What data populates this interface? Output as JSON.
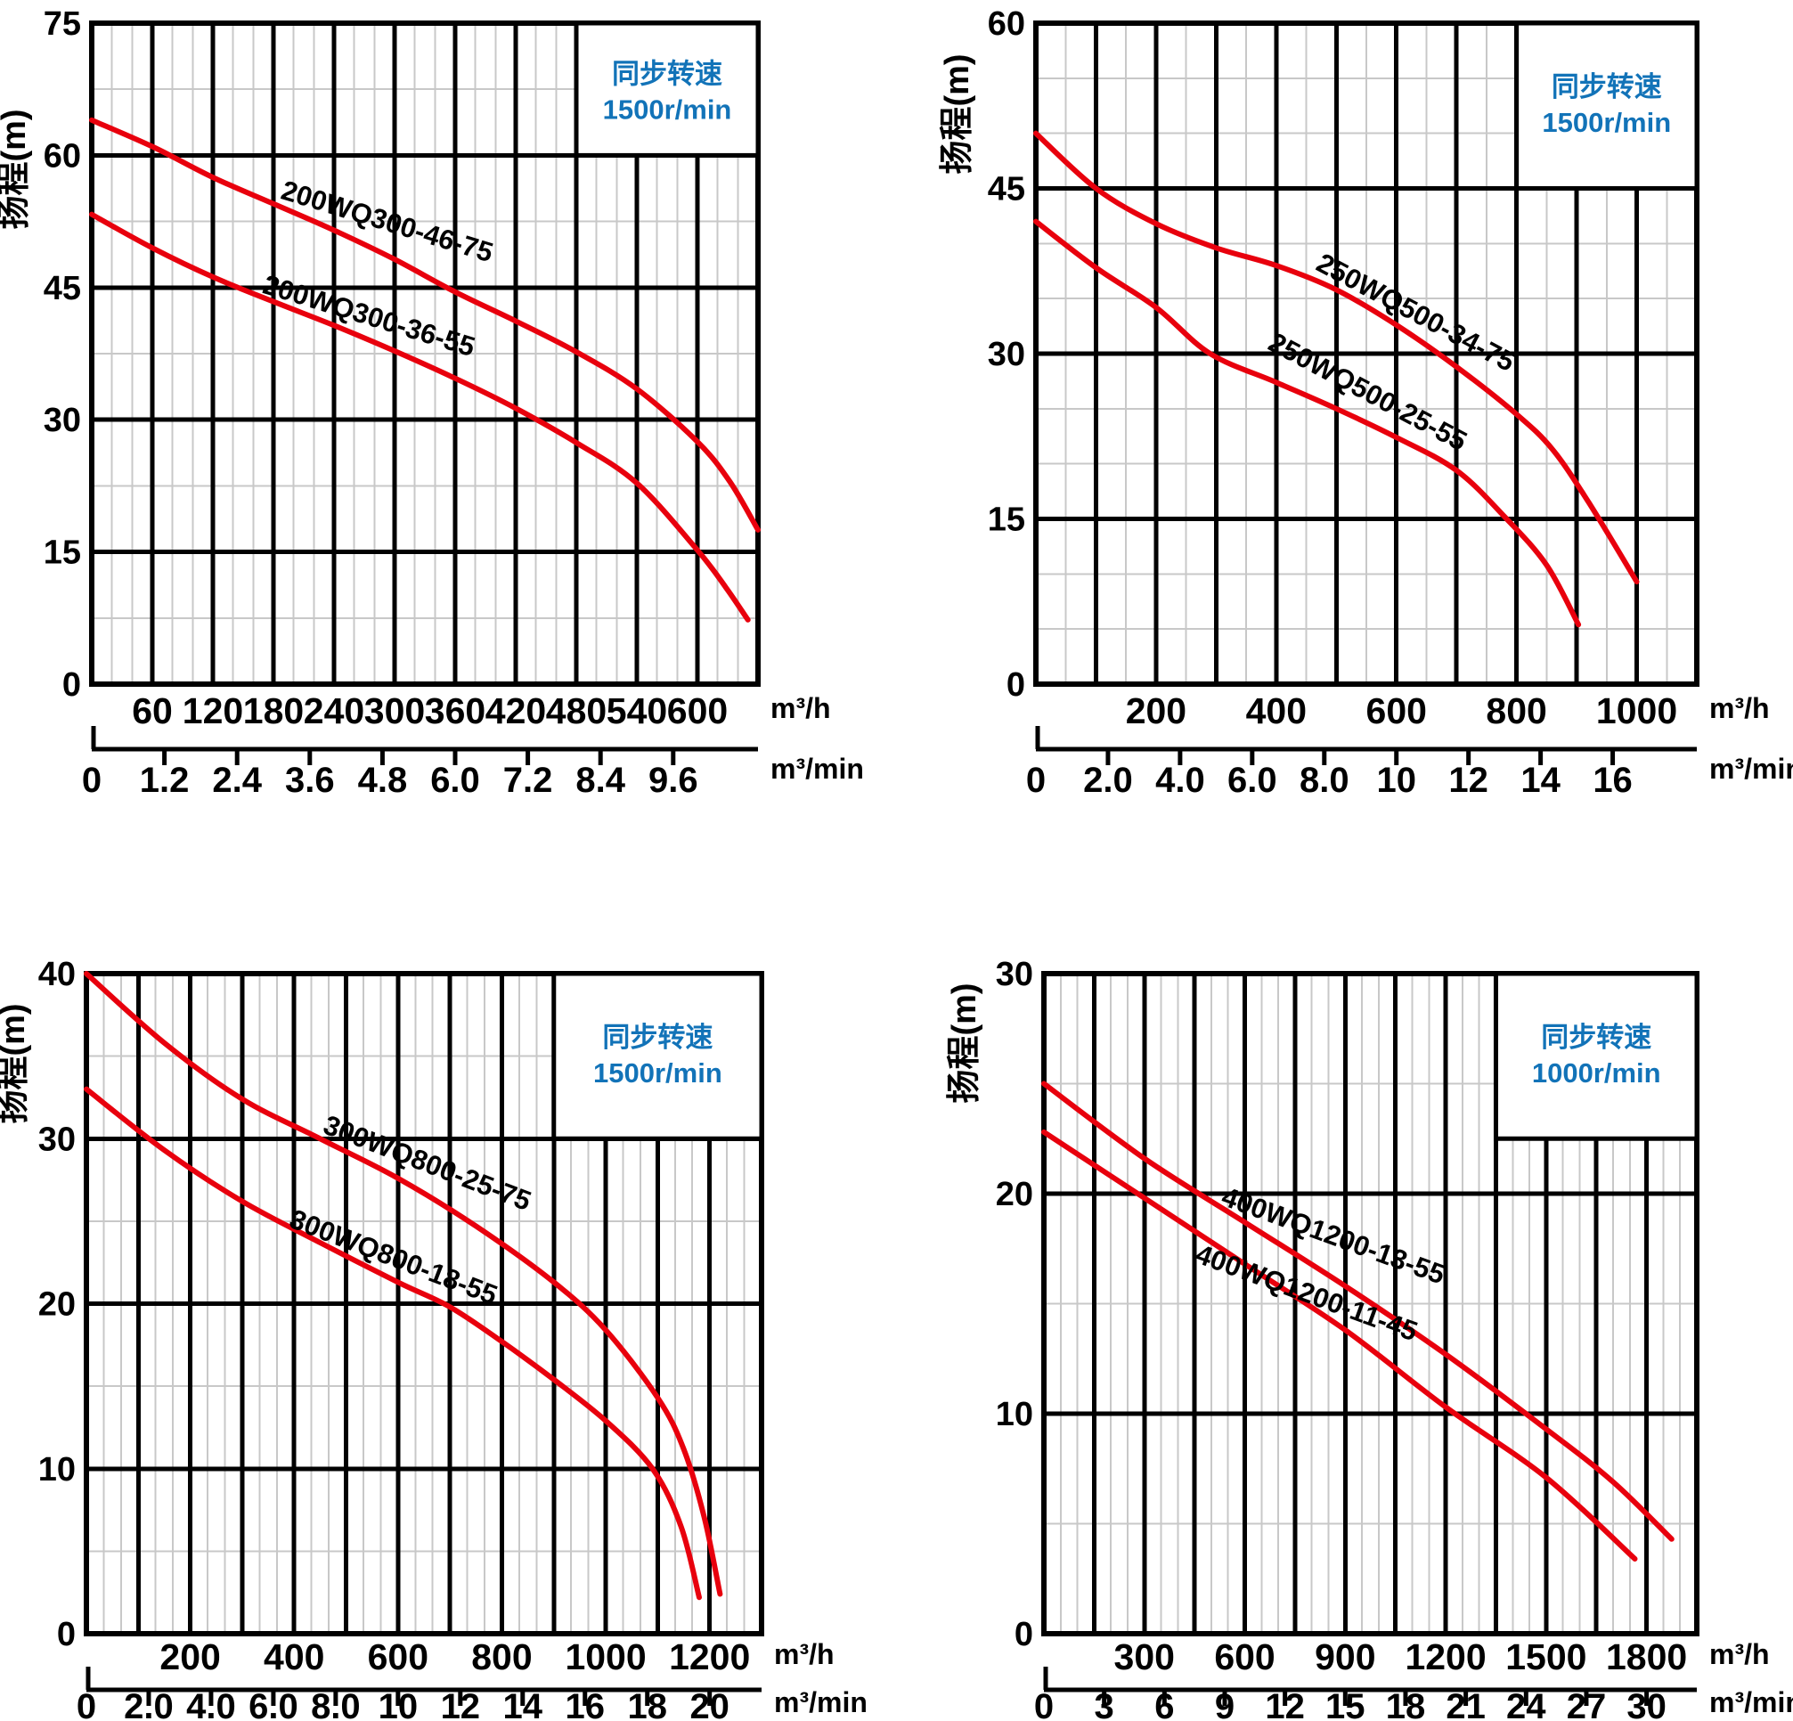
{
  "colors": {
    "curve_red": "#e8000d",
    "grid_major": "#000000",
    "grid_minor": "#c8c8c8",
    "label_blue": "#1273b8",
    "text": "#000000",
    "background": "#ffffff"
  },
  "units": {
    "hour": "m³/h",
    "minute": "m³/min"
  },
  "y_axis_title": "扬程(m)",
  "chart_data": [
    {
      "type": "line",
      "id": "200wq300",
      "ylabel": "扬程(m)",
      "xlabel": "m³/h",
      "ylim": [
        0,
        75
      ],
      "y_major": 15,
      "y_minor": 7.5,
      "y_ticks": [
        75,
        60,
        45,
        30,
        15,
        0
      ],
      "xlim": [
        0,
        660
      ],
      "x_major": 60,
      "x_minor": 20,
      "x_tick_values": [
        60,
        120,
        180,
        240,
        300,
        360,
        420,
        480,
        540,
        600
      ],
      "x_tick_labels": [
        "60",
        "120",
        "180",
        "240",
        "300",
        "360",
        "420",
        "480",
        "540",
        "600"
      ],
      "x2_tick_values": [
        0,
        1.2,
        2.4,
        3.6,
        4.8,
        6.0,
        7.2,
        8.4,
        9.6
      ],
      "x2_tick_labels": [
        "0",
        "1.2",
        "2.4",
        "3.6",
        "4.8",
        "6.0",
        "7.2",
        "8.4",
        "9.6"
      ],
      "x2_to_x_factor": 60,
      "speed_box": {
        "text_line1": "同步转速",
        "text_line2": "1500r/min",
        "left_x": 480,
        "bottom_y": 60
      },
      "series": [
        {
          "name": "200WQ300-46-75",
          "points": [
            [
              0,
              64
            ],
            [
              60,
              61
            ],
            [
              120,
              57.5
            ],
            [
              180,
              54.5
            ],
            [
              240,
              51.5
            ],
            [
              300,
              48.2
            ],
            [
              360,
              44.5
            ],
            [
              420,
              41.2
            ],
            [
              480,
              37.7
            ],
            [
              540,
              33.5
            ],
            [
              600,
              27.5
            ],
            [
              632,
              23
            ],
            [
              660,
              17.5
            ]
          ],
          "label_x": 290,
          "label_y": 51.5,
          "label_angle": 17
        },
        {
          "name": "200WQ300-36-55",
          "points": [
            [
              0,
              53.3
            ],
            [
              60,
              49.5
            ],
            [
              120,
              46.2
            ],
            [
              180,
              43.4
            ],
            [
              240,
              40.7
            ],
            [
              300,
              37.8
            ],
            [
              360,
              34.7
            ],
            [
              420,
              31.3
            ],
            [
              480,
              27.4
            ],
            [
              540,
              22.8
            ],
            [
              600,
              15.2
            ],
            [
              628,
              11
            ],
            [
              650,
              7.3
            ]
          ],
          "label_x": 272,
          "label_y": 40.8,
          "label_angle": 17
        }
      ]
    },
    {
      "type": "line",
      "id": "250wq500",
      "ylabel": "扬程(m)",
      "xlabel": "m³/h",
      "ylim": [
        0,
        60
      ],
      "y_major": 15,
      "y_minor": 5,
      "y_ticks": [
        60,
        45,
        30,
        15,
        0
      ],
      "xlim": [
        0,
        1100
      ],
      "x_major": 100,
      "x_minor": 50,
      "x_tick_values": [
        200,
        400,
        600,
        800,
        1000
      ],
      "x_tick_labels": [
        "200",
        "400",
        "600",
        "800",
        "1000"
      ],
      "x2_tick_values": [
        0,
        2.0,
        4.0,
        6.0,
        8.0,
        10,
        12,
        14,
        16
      ],
      "x2_tick_labels": [
        "0",
        "2.0",
        "4.0",
        "6.0",
        "8.0",
        "10",
        "12",
        "14",
        "16"
      ],
      "x2_to_x_factor": 60,
      "speed_box": {
        "text_line1": "同步转速",
        "text_line2": "1500r/min",
        "left_x": 800,
        "bottom_y": 45
      },
      "series": [
        {
          "name": "250WQ500-34-75",
          "points": [
            [
              0,
              50
            ],
            [
              100,
              45
            ],
            [
              200,
              41.8
            ],
            [
              300,
              39.6
            ],
            [
              400,
              38
            ],
            [
              500,
              35.8
            ],
            [
              600,
              32.6
            ],
            [
              700,
              28.8
            ],
            [
              800,
              24.5
            ],
            [
              860,
              21.3
            ],
            [
              920,
              16.5
            ],
            [
              1000,
              9.3
            ]
          ],
          "label_x": 625,
          "label_y": 33,
          "label_angle": 28
        },
        {
          "name": "250WQ500-25-55",
          "points": [
            [
              0,
              42
            ],
            [
              100,
              37.8
            ],
            [
              200,
              34.2
            ],
            [
              290,
              30
            ],
            [
              400,
              27.4
            ],
            [
              500,
              25
            ],
            [
              600,
              22.4
            ],
            [
              700,
              19.4
            ],
            [
              780,
              15.2
            ],
            [
              850,
              10.8
            ],
            [
              903,
              5.4
            ]
          ],
          "label_x": 545,
          "label_y": 25.8,
          "label_angle": 28
        }
      ]
    },
    {
      "type": "line",
      "id": "300wq800",
      "ylabel": "扬程(m)",
      "xlabel": "m³/h",
      "ylim": [
        0,
        40
      ],
      "y_major": 10,
      "y_minor": 5,
      "y_ticks": [
        40,
        30,
        20,
        10,
        0
      ],
      "xlim": [
        0,
        1300
      ],
      "x_major": 100,
      "x_minor": 33.333,
      "x_tick_values": [
        200,
        400,
        600,
        800,
        1000,
        1200
      ],
      "x_tick_labels": [
        "200",
        "400",
        "600",
        "800",
        "1000",
        "1200"
      ],
      "x2_tick_values": [
        0,
        2.0,
        4.0,
        6.0,
        8.0,
        10,
        12,
        14,
        16,
        18,
        20
      ],
      "x2_tick_labels": [
        "0",
        "2.0",
        "4.0",
        "6.0",
        "8.0",
        "10",
        "12",
        "14",
        "16",
        "18",
        "20"
      ],
      "x2_to_x_factor": 60,
      "speed_box": {
        "text_line1": "同步转速",
        "text_line2": "1500r/min",
        "left_x": 900,
        "bottom_y": 30
      },
      "series": [
        {
          "name": "300WQ800-25-75",
          "points": [
            [
              0,
              40
            ],
            [
              150,
              35.8
            ],
            [
              300,
              32.4
            ],
            [
              450,
              30
            ],
            [
              600,
              27.6
            ],
            [
              750,
              24.7
            ],
            [
              900,
              21.3
            ],
            [
              1000,
              18.4
            ],
            [
              1100,
              14.3
            ],
            [
              1150,
              11.2
            ],
            [
              1190,
              7
            ],
            [
              1220,
              2.4
            ]
          ],
          "label_x": 650,
          "label_y": 28,
          "label_angle": 21
        },
        {
          "name": "300WQ800-18-55",
          "points": [
            [
              0,
              33
            ],
            [
              150,
              29.3
            ],
            [
              300,
              26.2
            ],
            [
              450,
              23.7
            ],
            [
              600,
              21.3
            ],
            [
              700,
              19.8
            ],
            [
              800,
              17.7
            ],
            [
              900,
              15.4
            ],
            [
              1000,
              12.9
            ],
            [
              1090,
              10
            ],
            [
              1145,
              6.5
            ],
            [
              1180,
              2.2
            ]
          ],
          "label_x": 585,
          "label_y": 22.3,
          "label_angle": 21
        }
      ]
    },
    {
      "type": "line",
      "id": "400wq1200",
      "ylabel": "扬程(m)",
      "xlabel": "m³/h",
      "ylim": [
        0,
        30
      ],
      "y_major": 10,
      "y_minor": 5,
      "y_ticks": [
        30,
        20,
        10,
        0
      ],
      "xlim": [
        0,
        1950
      ],
      "x_major": 150,
      "x_minor": 50,
      "x_tick_values": [
        300,
        600,
        900,
        1200,
        1500,
        1800
      ],
      "x_tick_labels": [
        "300",
        "600",
        "900",
        "1200",
        "1500",
        "1800"
      ],
      "x2_tick_values": [
        0,
        3,
        6,
        9,
        12,
        15,
        18,
        21,
        24,
        27,
        30
      ],
      "x2_tick_labels": [
        "0",
        "3",
        "6",
        "9",
        "12",
        "15",
        "18",
        "21",
        "24",
        "27",
        "30"
      ],
      "x2_to_x_factor": 60,
      "speed_box": {
        "text_line1": "同步转速",
        "text_line2": "1000r/min",
        "left_x": 1350,
        "bottom_y": 22.5
      },
      "series": [
        {
          "name": "400WQ1200-13-55",
          "points": [
            [
              0,
              25
            ],
            [
              300,
              21.6
            ],
            [
              600,
              18.7
            ],
            [
              900,
              15.8
            ],
            [
              1200,
              12.7
            ],
            [
              1500,
              9.3
            ],
            [
              1700,
              6.9
            ],
            [
              1875,
              4.3
            ]
          ],
          "label_x": 855,
          "label_y": 17.7,
          "label_angle": 20
        },
        {
          "name": "400WQ1200-11-45",
          "points": [
            [
              0,
              22.8
            ],
            [
              300,
              19.8
            ],
            [
              600,
              16.8
            ],
            [
              900,
              13.8
            ],
            [
              1200,
              10.3
            ],
            [
              1500,
              7.1
            ],
            [
              1765,
              3.4
            ]
          ],
          "label_x": 775,
          "label_y": 15.1,
          "label_angle": 20
        }
      ]
    }
  ]
}
